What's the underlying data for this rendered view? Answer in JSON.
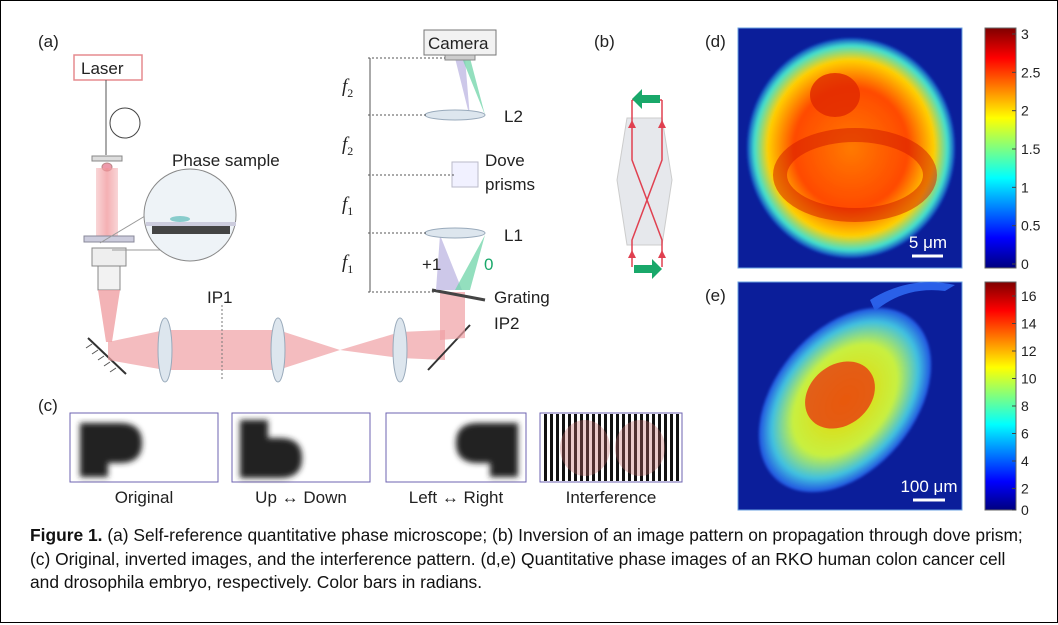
{
  "panels": {
    "a": "(a)",
    "b": "(b)",
    "c": "(c)",
    "d": "(d)",
    "e": "(e)"
  },
  "setup": {
    "laser": "Laser",
    "phase_sample": "Phase sample",
    "camera": "Camera",
    "ip1": "IP1",
    "ip2": "IP2",
    "l1": "L1",
    "l2": "L2",
    "dove": [
      "Dove",
      "prisms"
    ],
    "grating": "Grating",
    "order_plus": "+1",
    "order_zero": "0",
    "distances": [
      [
        "f",
        "2"
      ],
      [
        "f",
        "2"
      ],
      [
        "f",
        "1"
      ],
      [
        "f",
        "1"
      ]
    ]
  },
  "images": [
    "Original",
    "Up ↔ Down",
    "Left ↔ Right",
    "Interference"
  ],
  "phase_maps": [
    {
      "scale_bar": "5 μm",
      "colorbar_ticks": [
        0,
        0.5,
        1,
        1.5,
        2,
        2.5,
        3
      ]
    },
    {
      "scale_bar": "100 μm",
      "colorbar_ticks": [
        0,
        2,
        4,
        6,
        8,
        10,
        12,
        14,
        16
      ]
    }
  ],
  "caption": {
    "label": "Figure 1.",
    "text": " (a) Self-reference quantitative phase microscope; (b) Inversion of an image pattern on propagation through dove prism; (c) Original, inverted images, and the interference pattern. (d,e) Quantitative phase images of an RKO human colon cancer cell and drosophila embryo, respectively. Color bars in radians."
  }
}
